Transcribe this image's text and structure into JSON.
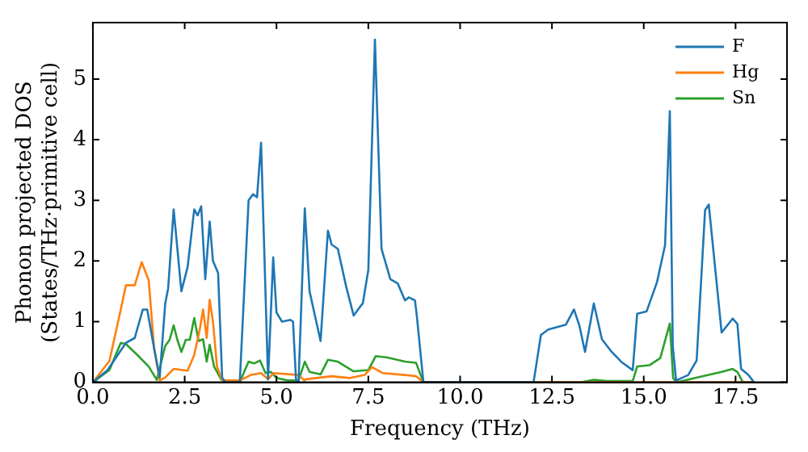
{
  "chart_data": {
    "type": "line",
    "xlabel": "Frequency (THz)",
    "ylabel": "Phonon projected DOS\n(States/THz·primitive cell)",
    "xlim": [
      0,
      18.9
    ],
    "ylim": [
      0,
      5.93
    ],
    "xticks": [
      {
        "value": 0,
        "label": "0.0"
      },
      {
        "value": 2.5,
        "label": "2.5"
      },
      {
        "value": 5,
        "label": "5.0"
      },
      {
        "value": 7.5,
        "label": "7.5"
      },
      {
        "value": 10,
        "label": "10.0"
      },
      {
        "value": 12.5,
        "label": "12.5"
      },
      {
        "value": 15,
        "label": "15.0"
      },
      {
        "value": 17.5,
        "label": "17.5"
      }
    ],
    "yticks": [
      0,
      1,
      2,
      3,
      4,
      5
    ],
    "grid": false,
    "legend": "top right",
    "marker": "none",
    "line_style": "solid",
    "series": [
      {
        "name": "F",
        "color": "#1f77b4",
        "x": [
          0,
          0.4,
          0.9,
          1.14,
          1.36,
          1.48,
          1.67,
          1.82,
          1.97,
          2.05,
          2.2,
          2.41,
          2.58,
          2.76,
          2.85,
          2.95,
          3.06,
          3.18,
          3.27,
          3.41,
          3.52,
          3.6,
          4.0,
          4.24,
          4.36,
          4.47,
          4.58,
          4.77,
          4.91,
          5.0,
          5.15,
          5.38,
          5.45,
          5.53,
          5.6,
          5.77,
          5.9,
          6.2,
          6.4,
          6.5,
          6.67,
          6.9,
          7.1,
          7.27,
          7.35,
          7.5,
          7.68,
          7.86,
          8.1,
          8.3,
          8.5,
          8.6,
          8.77,
          8.82,
          9.0,
          12.0,
          12.2,
          12.4,
          12.88,
          13.1,
          13.25,
          13.4,
          13.64,
          13.86,
          14.1,
          14.4,
          14.7,
          14.82,
          15.08,
          15.36,
          15.58,
          15.71,
          15.79,
          15.88,
          16.21,
          16.44,
          16.67,
          16.77,
          17.12,
          17.42,
          17.55,
          17.65,
          17.85,
          18.0
        ],
        "values": [
          0,
          0.2,
          0.65,
          0.73,
          1.2,
          1.2,
          0.55,
          0.08,
          1.3,
          1.55,
          2.85,
          1.5,
          1.9,
          2.85,
          2.75,
          2.9,
          1.7,
          2.65,
          2.0,
          1.8,
          0.08,
          0,
          0,
          3.0,
          3.1,
          3.05,
          3.95,
          0.05,
          2.06,
          1.15,
          1.0,
          1.03,
          1.0,
          0.05,
          0,
          2.87,
          1.5,
          0.68,
          2.5,
          2.27,
          2.2,
          1.57,
          1.1,
          1.24,
          1.3,
          1.85,
          5.65,
          2.2,
          1.7,
          1.63,
          1.35,
          1.4,
          1.35,
          1.1,
          0,
          0,
          0.78,
          0.87,
          0.95,
          1.2,
          0.93,
          0.5,
          1.3,
          0.71,
          0.52,
          0.33,
          0.2,
          1.13,
          1.17,
          1.65,
          2.26,
          4.47,
          0.6,
          0.03,
          0.12,
          0.36,
          2.84,
          2.93,
          0.82,
          1.05,
          0.96,
          0.22,
          0.12,
          0
        ]
      },
      {
        "name": "Hg",
        "color": "#ff7f0e",
        "x": [
          0,
          0.45,
          0.76,
          0.9,
          1.14,
          1.33,
          1.52,
          1.67,
          1.82,
          1.97,
          2.2,
          2.58,
          2.76,
          2.91,
          3.0,
          3.1,
          3.18,
          3.27,
          3.38,
          3.52,
          4.0,
          4.3,
          4.58,
          4.77,
          4.92,
          5.6,
          5.76,
          5.8,
          6.5,
          7.0,
          7.4,
          7.6,
          7.9,
          8.5,
          8.8,
          9.0,
          18.0
        ],
        "values": [
          0,
          0.35,
          1.2,
          1.6,
          1.6,
          1.98,
          1.68,
          0.55,
          0.03,
          0.08,
          0.22,
          0.19,
          0.45,
          0.87,
          1.2,
          0.73,
          1.36,
          1.0,
          0.26,
          0.03,
          0.03,
          0.12,
          0.15,
          0.05,
          0.15,
          0.12,
          0.03,
          0.05,
          0.1,
          0.07,
          0.12,
          0.25,
          0.15,
          0.12,
          0.1,
          0,
          0
        ]
      },
      {
        "name": "Sn",
        "color": "#2ca02c",
        "x": [
          0,
          0.45,
          0.76,
          0.9,
          1.21,
          1.52,
          1.74,
          1.97,
          2.09,
          2.2,
          2.3,
          2.41,
          2.53,
          2.64,
          2.76,
          2.88,
          3.0,
          3.1,
          3.18,
          3.3,
          3.5,
          4.0,
          4.24,
          4.39,
          4.55,
          4.7,
          4.85,
          5.0,
          5.3,
          5.6,
          5.77,
          5.9,
          6.2,
          6.4,
          6.67,
          7.1,
          7.5,
          7.7,
          8.0,
          8.5,
          8.8,
          9.0,
          13.3,
          13.64,
          14.0,
          14.7,
          14.82,
          15.15,
          15.45,
          15.71,
          15.8,
          15.9,
          16.4,
          17.12,
          17.42,
          17.55,
          17.7,
          18.0
        ],
        "values": [
          0,
          0.2,
          0.65,
          0.63,
          0.45,
          0.26,
          0.04,
          0.6,
          0.7,
          0.94,
          0.7,
          0.5,
          0.7,
          0.7,
          1.06,
          0.68,
          0.71,
          0.34,
          0.62,
          0.26,
          0.04,
          0,
          0.34,
          0.31,
          0.36,
          0.15,
          0.17,
          0.07,
          0.03,
          0.03,
          0.34,
          0.17,
          0.13,
          0.37,
          0.34,
          0.18,
          0.2,
          0.43,
          0.41,
          0.34,
          0.32,
          0,
          0,
          0.04,
          0.02,
          0.02,
          0.26,
          0.28,
          0.4,
          0.97,
          0.07,
          0,
          0.07,
          0.17,
          0.22,
          0.17,
          0,
          0
        ]
      }
    ]
  }
}
